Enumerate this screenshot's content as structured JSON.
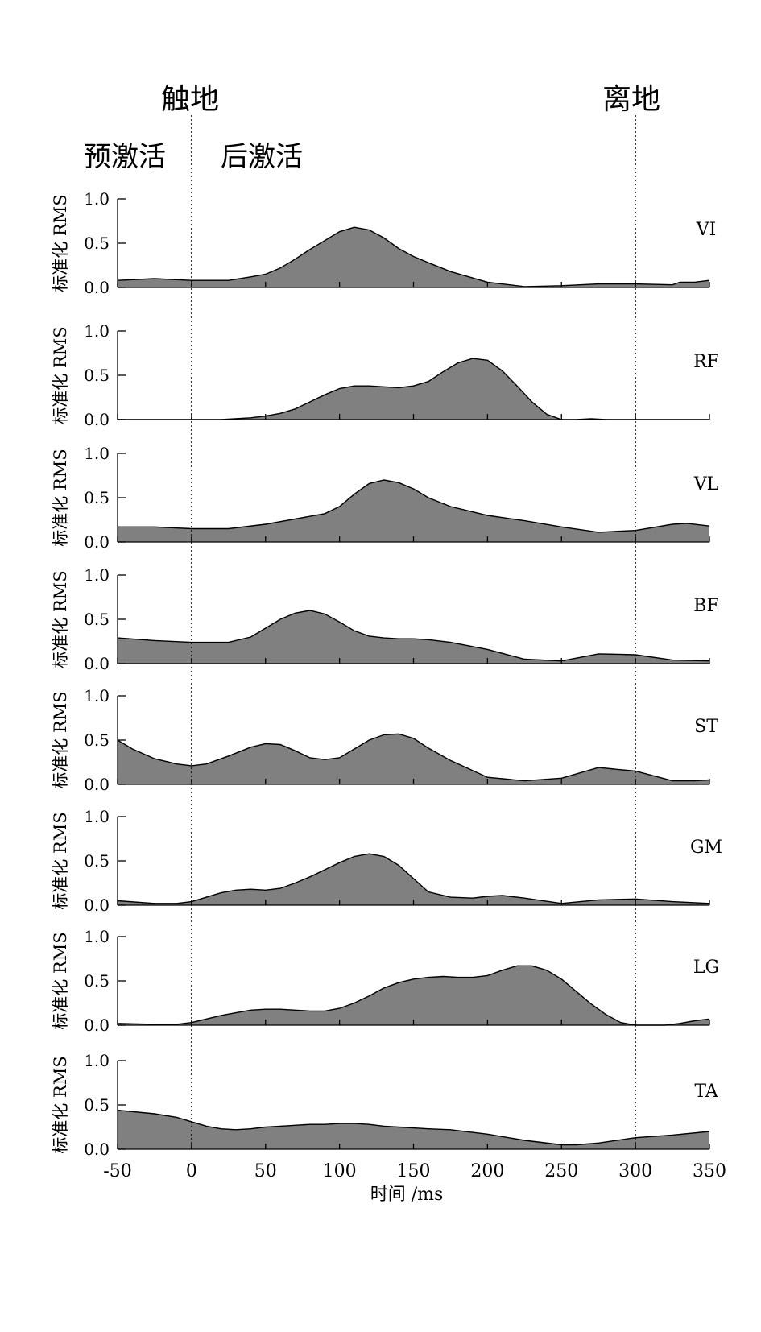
{
  "header": {
    "touchdown_label": "触地",
    "toeoff_label": "离地",
    "pre_activation_label": "预激活",
    "post_activation_label": "后激活"
  },
  "colors": {
    "fill": "#808080",
    "stroke": "#000000"
  },
  "chart_data": {
    "type": "area",
    "xlabel": "时间 /ms",
    "ylabel": "标准化 RMS",
    "xlim": [
      -50,
      350
    ],
    "ylim": [
      0,
      1
    ],
    "x_ticks": [
      -50,
      0,
      50,
      100,
      150,
      200,
      250,
      300,
      350
    ],
    "x_tick_labels": [
      "-50",
      "0",
      "50",
      "100",
      "150",
      "200",
      "250",
      "300",
      "350"
    ],
    "y_ticks": [
      0,
      0.5,
      1
    ],
    "y_tick_labels": [
      "0.0",
      "0.5",
      "1.0"
    ],
    "reference_lines": [
      {
        "x": 0,
        "label": "触地",
        "style": "dotted"
      },
      {
        "x": 300,
        "label": "离地",
        "style": "dotted"
      }
    ],
    "grid": false,
    "series": [
      {
        "name": "VI",
        "x": [
          -50,
          -25,
          0,
          25,
          40,
          50,
          60,
          70,
          80,
          90,
          100,
          110,
          120,
          130,
          140,
          150,
          160,
          175,
          200,
          225,
          250,
          275,
          300,
          325,
          330,
          340,
          350
        ],
        "values": [
          0.08,
          0.1,
          0.08,
          0.08,
          0.12,
          0.15,
          0.22,
          0.32,
          0.43,
          0.53,
          0.63,
          0.68,
          0.65,
          0.56,
          0.44,
          0.35,
          0.28,
          0.18,
          0.06,
          0.01,
          0.02,
          0.04,
          0.04,
          0.03,
          0.06,
          0.06,
          0.08
        ]
      },
      {
        "name": "RF",
        "x": [
          -50,
          -25,
          0,
          20,
          40,
          50,
          60,
          70,
          80,
          90,
          100,
          110,
          120,
          130,
          140,
          150,
          160,
          170,
          180,
          190,
          200,
          210,
          220,
          230,
          240,
          250,
          260,
          270,
          280,
          290,
          300,
          325,
          350
        ],
        "values": [
          0.0,
          0.0,
          0.0,
          0.0,
          0.02,
          0.04,
          0.07,
          0.12,
          0.2,
          0.28,
          0.35,
          0.38,
          0.38,
          0.37,
          0.36,
          0.38,
          0.43,
          0.54,
          0.64,
          0.69,
          0.67,
          0.55,
          0.38,
          0.2,
          0.06,
          0.0,
          0.0,
          0.01,
          0.0,
          0.0,
          0.0,
          0.0,
          0.0
        ]
      },
      {
        "name": "VL",
        "x": [
          -50,
          -25,
          0,
          25,
          50,
          70,
          90,
          100,
          110,
          120,
          130,
          140,
          150,
          160,
          175,
          200,
          225,
          250,
          275,
          300,
          325,
          335,
          350
        ],
        "values": [
          0.17,
          0.17,
          0.15,
          0.15,
          0.2,
          0.26,
          0.32,
          0.4,
          0.54,
          0.66,
          0.7,
          0.67,
          0.6,
          0.5,
          0.4,
          0.3,
          0.24,
          0.17,
          0.11,
          0.13,
          0.2,
          0.21,
          0.18
        ]
      },
      {
        "name": "BF",
        "x": [
          -50,
          -25,
          0,
          25,
          40,
          50,
          60,
          70,
          80,
          90,
          100,
          110,
          120,
          130,
          140,
          150,
          160,
          175,
          200,
          225,
          250,
          275,
          300,
          325,
          350
        ],
        "values": [
          0.29,
          0.26,
          0.24,
          0.24,
          0.3,
          0.4,
          0.5,
          0.57,
          0.6,
          0.56,
          0.47,
          0.37,
          0.31,
          0.29,
          0.28,
          0.28,
          0.27,
          0.24,
          0.16,
          0.05,
          0.03,
          0.11,
          0.1,
          0.04,
          0.03
        ]
      },
      {
        "name": "ST",
        "x": [
          -50,
          -40,
          -25,
          -10,
          0,
          10,
          25,
          40,
          50,
          60,
          70,
          80,
          90,
          100,
          110,
          120,
          130,
          140,
          150,
          160,
          175,
          200,
          225,
          250,
          275,
          300,
          325,
          340,
          350
        ],
        "values": [
          0.5,
          0.4,
          0.29,
          0.23,
          0.21,
          0.23,
          0.32,
          0.42,
          0.46,
          0.45,
          0.38,
          0.3,
          0.28,
          0.3,
          0.4,
          0.5,
          0.56,
          0.57,
          0.52,
          0.41,
          0.27,
          0.08,
          0.04,
          0.07,
          0.19,
          0.15,
          0.04,
          0.04,
          0.05
        ]
      },
      {
        "name": "GM",
        "x": [
          -50,
          -25,
          -10,
          0,
          10,
          20,
          30,
          40,
          50,
          60,
          70,
          80,
          90,
          100,
          110,
          120,
          130,
          140,
          150,
          160,
          175,
          190,
          200,
          210,
          225,
          250,
          275,
          300,
          325,
          350
        ],
        "values": [
          0.05,
          0.02,
          0.02,
          0.04,
          0.09,
          0.14,
          0.17,
          0.18,
          0.17,
          0.19,
          0.25,
          0.32,
          0.4,
          0.48,
          0.55,
          0.58,
          0.55,
          0.45,
          0.3,
          0.15,
          0.09,
          0.08,
          0.1,
          0.11,
          0.08,
          0.02,
          0.06,
          0.07,
          0.04,
          0.02
        ]
      },
      {
        "name": "LG",
        "x": [
          -50,
          -25,
          -10,
          0,
          10,
          20,
          30,
          40,
          50,
          60,
          70,
          80,
          90,
          100,
          110,
          120,
          130,
          140,
          150,
          160,
          170,
          180,
          190,
          200,
          210,
          220,
          230,
          240,
          250,
          260,
          270,
          280,
          290,
          300,
          310,
          320,
          330,
          340,
          350
        ],
        "values": [
          0.02,
          0.01,
          0.01,
          0.03,
          0.07,
          0.11,
          0.14,
          0.17,
          0.18,
          0.18,
          0.17,
          0.16,
          0.16,
          0.19,
          0.25,
          0.33,
          0.42,
          0.48,
          0.52,
          0.54,
          0.55,
          0.54,
          0.54,
          0.56,
          0.62,
          0.67,
          0.67,
          0.62,
          0.52,
          0.38,
          0.24,
          0.12,
          0.03,
          0.0,
          0.0,
          0.0,
          0.02,
          0.05,
          0.07
        ]
      },
      {
        "name": "TA",
        "x": [
          -50,
          -25,
          -10,
          0,
          10,
          20,
          30,
          40,
          50,
          60,
          70,
          80,
          90,
          100,
          110,
          120,
          130,
          140,
          150,
          160,
          175,
          200,
          225,
          250,
          260,
          275,
          300,
          325,
          350
        ],
        "values": [
          0.44,
          0.4,
          0.36,
          0.31,
          0.26,
          0.23,
          0.22,
          0.23,
          0.25,
          0.26,
          0.27,
          0.28,
          0.28,
          0.29,
          0.29,
          0.28,
          0.26,
          0.25,
          0.24,
          0.23,
          0.22,
          0.17,
          0.1,
          0.05,
          0.05,
          0.07,
          0.13,
          0.16,
          0.2
        ]
      }
    ]
  }
}
